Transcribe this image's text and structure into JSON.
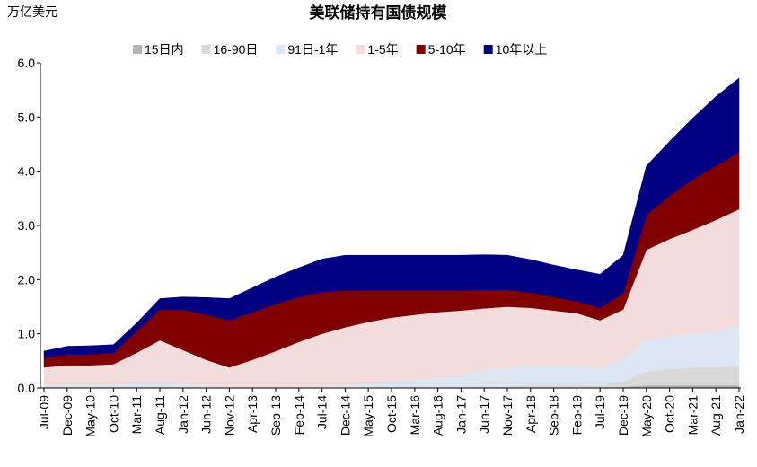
{
  "chart_data": {
    "type": "stacked_area",
    "title": "美联储持有国债规模",
    "y_label": "万亿美元",
    "categories": [
      "Jul-09",
      "Dec-09",
      "May-10",
      "Oct-10",
      "Mar-11",
      "Aug-11",
      "Jan-12",
      "Jun-12",
      "Nov-12",
      "Apr-13",
      "Sep-13",
      "Feb-14",
      "Jul-14",
      "Dec-14",
      "May-15",
      "Oct-15",
      "Mar-16",
      "Aug-16",
      "Jan-17",
      "Jun-17",
      "Nov-17",
      "Apr-18",
      "Sep-18",
      "Feb-19",
      "Jul-19",
      "Dec-19",
      "May-20",
      "Oct-20",
      "Mar-21",
      "Aug-21",
      "Jan-22"
    ],
    "series": [
      {
        "name": "15日内",
        "color": "#b3b3b3",
        "values": [
          0.01,
          0.01,
          0.01,
          0.01,
          0.01,
          0.01,
          0.01,
          0,
          0,
          0,
          0,
          0,
          0,
          0,
          0,
          0,
          0,
          0,
          0,
          0,
          0,
          0,
          0,
          0,
          0,
          0.02,
          0.05,
          0.05,
          0.05,
          0.05,
          0.05
        ]
      },
      {
        "name": "16-90日",
        "color": "#d9d9d9",
        "values": [
          0.01,
          0.01,
          0.01,
          0.01,
          0.02,
          0.02,
          0.01,
          0.01,
          0,
          0,
          0,
          0,
          0,
          0.01,
          0.01,
          0.01,
          0.02,
          0.02,
          0.02,
          0.02,
          0.03,
          0.06,
          0.06,
          0.06,
          0.05,
          0.1,
          0.25,
          0.3,
          0.33,
          0.33,
          0.35
        ]
      },
      {
        "name": "91日-1年",
        "color": "#dde7f3",
        "values": [
          0.03,
          0.03,
          0.03,
          0.04,
          0.07,
          0.09,
          0.06,
          0.02,
          0.01,
          0.01,
          0.01,
          0.02,
          0.03,
          0.04,
          0.07,
          0.11,
          0.13,
          0.16,
          0.23,
          0.3,
          0.35,
          0.34,
          0.34,
          0.34,
          0.31,
          0.43,
          0.6,
          0.6,
          0.62,
          0.67,
          0.75
        ]
      },
      {
        "name": "1-5年",
        "color": "#f3dcdc",
        "values": [
          0.33,
          0.37,
          0.37,
          0.38,
          0.55,
          0.76,
          0.62,
          0.49,
          0.37,
          0.51,
          0.67,
          0.83,
          0.97,
          1.07,
          1.14,
          1.18,
          1.2,
          1.22,
          1.18,
          1.15,
          1.12,
          1.08,
          1.03,
          0.98,
          0.89,
          0.9,
          1.65,
          1.8,
          1.92,
          2.05,
          2.15
        ]
      },
      {
        "name": "5-10年",
        "color": "#800000",
        "values": [
          0.17,
          0.2,
          0.2,
          0.21,
          0.4,
          0.57,
          0.75,
          0.83,
          0.87,
          0.88,
          0.87,
          0.83,
          0.77,
          0.68,
          0.58,
          0.5,
          0.45,
          0.4,
          0.37,
          0.34,
          0.31,
          0.28,
          0.25,
          0.22,
          0.23,
          0.3,
          0.65,
          0.8,
          0.93,
          1.0,
          1.05
        ]
      },
      {
        "name": "10年以上",
        "color": "#000080",
        "values": [
          0.13,
          0.15,
          0.16,
          0.15,
          0.15,
          0.2,
          0.23,
          0.32,
          0.4,
          0.45,
          0.5,
          0.54,
          0.61,
          0.65,
          0.65,
          0.65,
          0.65,
          0.65,
          0.65,
          0.65,
          0.64,
          0.61,
          0.59,
          0.58,
          0.62,
          0.7,
          0.9,
          1.0,
          1.13,
          1.28,
          1.37
        ]
      }
    ],
    "ylim": [
      0,
      6
    ],
    "yticks": [
      {
        "value": 0,
        "label": "0.0"
      },
      {
        "value": 1,
        "label": "1.0"
      },
      {
        "value": 2,
        "label": "2.0"
      },
      {
        "value": 3,
        "label": "3.0"
      },
      {
        "value": 4,
        "label": "4.0"
      },
      {
        "value": 5,
        "label": "5.0"
      },
      {
        "value": 6,
        "label": "6.0"
      }
    ],
    "legend": "top"
  }
}
